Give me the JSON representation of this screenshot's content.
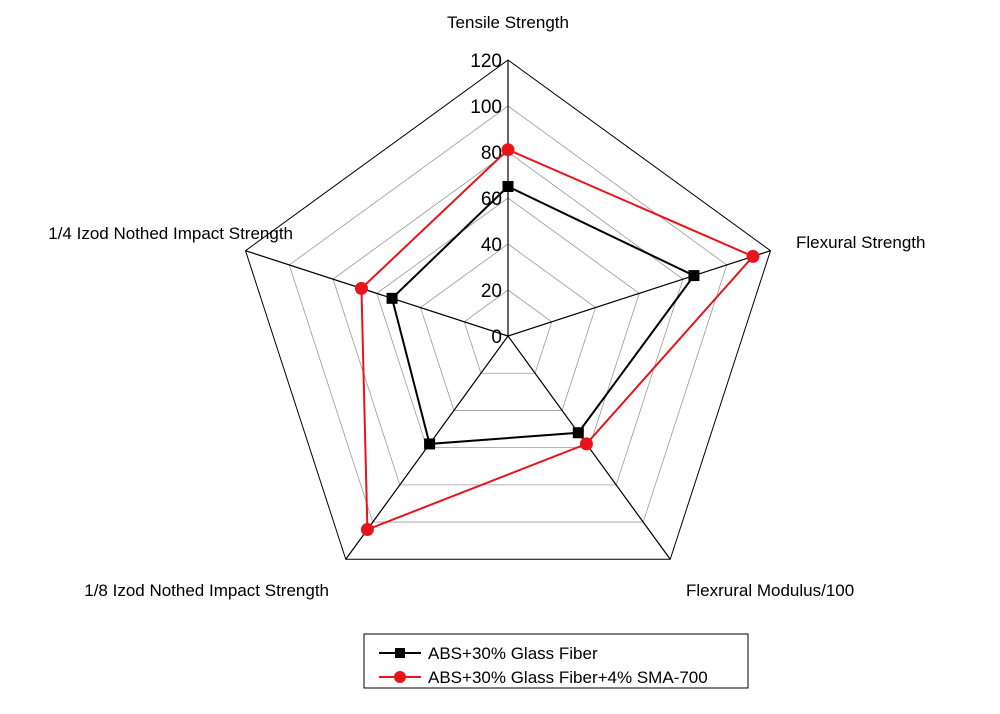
{
  "chart_data": {
    "type": "radar",
    "axes": [
      "Tensile Strength",
      "Flexural Strength",
      "Flexrural Modulus/100",
      "1/8 Izod Nothed Impact Strength",
      "1/4 Izod Nothed Impact Strength"
    ],
    "rlim": [
      0,
      120
    ],
    "ticks": [
      "0",
      "20",
      "40",
      "60",
      "80",
      "100",
      "120"
    ],
    "grid": true,
    "legend_position": "bottom",
    "series": [
      {
        "name": "ABS+30% Glass Fiber",
        "color": "#000000",
        "marker": "square",
        "values": [
          65,
          85,
          52,
          58,
          53
        ]
      },
      {
        "name": "ABS+30% Glass Fiber+4% SMA-700",
        "color": "#e8141c",
        "marker": "circle",
        "values": [
          81,
          112,
          58,
          104,
          67
        ]
      }
    ]
  }
}
